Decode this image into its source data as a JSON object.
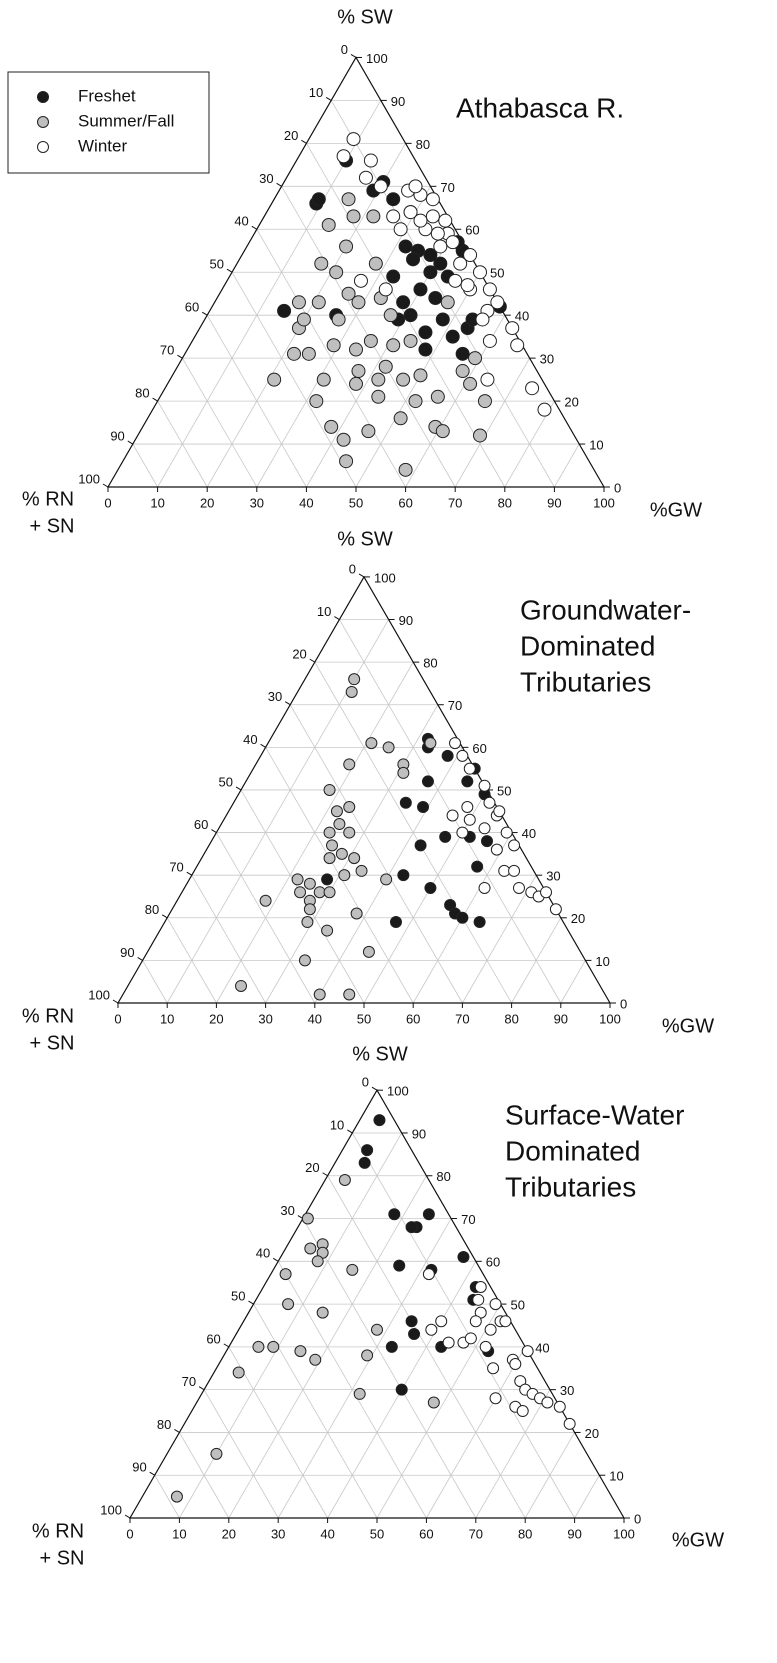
{
  "chart_data": [
    {
      "type": "ternary",
      "title": [
        "Athabasca R."
      ],
      "sw_label": "% SW",
      "gw_label": "%GW",
      "rn_label": [
        "% RN",
        "+ SN"
      ],
      "legend": "upper left",
      "grid": true,
      "sw_ticks": [
        0,
        10,
        20,
        30,
        40,
        50,
        60,
        70,
        80,
        90,
        100
      ],
      "gw_ticks": [
        0,
        10,
        20,
        30,
        40,
        50,
        60,
        70,
        80,
        90,
        100
      ],
      "rn_ticks": [
        0,
        10,
        20,
        30,
        40,
        50,
        60,
        70,
        80,
        90,
        100
      ],
      "series": [
        {
          "name": "Freshet",
          "color": "#1a1a1a",
          "gw": [
            10,
            9,
            9,
            20,
            19,
            24,
            29,
            35,
            38,
            41,
            44,
            40,
            33,
            38,
            40,
            44,
            41,
            46,
            54,
            54,
            58,
            48,
            48,
            56,
            52,
            26,
            15,
            39,
            44,
            42,
            32,
            35
          ],
          "sw": [
            76,
            66,
            67,
            71,
            69,
            67,
            64,
            55,
            54,
            52,
            55,
            50,
            49,
            43,
            46,
            44,
            40,
            36,
            37,
            39,
            42,
            39,
            32,
            31,
            35,
            40,
            41,
            39,
            49,
            57,
            56,
            53
          ]
        },
        {
          "name": "Summer/Fall",
          "color": "#bfbfbf",
          "gw": [
            15,
            18,
            14,
            22,
            28,
            20,
            17,
            21,
            17,
            21,
            26,
            33,
            20,
            22,
            21,
            25,
            29,
            36,
            37,
            44,
            42,
            47,
            52,
            56,
            61,
            66,
            69,
            38,
            42,
            32,
            38,
            44,
            46,
            51,
            59,
            61,
            37,
            31,
            45,
            58,
            59,
            29,
            27,
            20,
            47,
            58,
            50,
            41,
            42,
            34
          ],
          "sw": [
            67,
            63,
            61,
            63,
            52,
            56,
            52,
            50,
            43,
            43,
            45,
            44,
            37,
            31,
            25,
            31,
            33,
            34,
            40,
            34,
            28,
            25,
            20,
            21,
            24,
            20,
            12,
            14,
            11,
            20,
            24,
            21,
            13,
            16,
            14,
            13,
            27,
            25,
            6,
            4,
            30,
            43,
            39,
            39,
            43,
            27,
            26,
            33,
            25,
            32
          ]
        },
        {
          "name": "Winter",
          "color": "#ffffff",
          "gw": [
            9,
            9,
            15,
            16,
            20,
            26,
            29,
            32,
            29,
            34,
            37,
            34,
            39,
            39,
            41,
            46,
            50,
            50,
            54,
            56,
            56,
            63,
            66,
            57,
            49,
            37,
            32,
            26,
            29,
            45,
            74,
            79,
            64,
            60,
            27,
            33,
            27,
            46
          ],
          "sw": [
            81,
            77,
            76,
            72,
            70,
            69,
            68,
            67,
            64,
            63,
            62,
            60,
            59,
            56,
            57,
            54,
            50,
            46,
            46,
            41,
            39,
            37,
            33,
            43,
            47,
            59,
            62,
            63,
            60,
            52,
            23,
            18,
            25,
            34,
            70,
            46,
            48,
            48
          ]
        }
      ]
    },
    {
      "type": "ternary",
      "title": [
        "Groundwater-",
        "Dominated",
        "Tributaries"
      ],
      "sw_label": "% SW",
      "gw_label": "%GW",
      "rn_label": [
        "% RN",
        "+ SN"
      ],
      "grid": true,
      "sw_ticks": [
        0,
        10,
        20,
        30,
        40,
        50,
        60,
        70,
        80,
        90,
        100
      ],
      "gw_ticks": [
        0,
        10,
        20,
        30,
        40,
        50,
        60,
        70,
        80,
        90,
        100
      ],
      "rn_ticks": [
        0,
        10,
        20,
        30,
        40,
        50,
        60,
        70,
        80,
        90,
        100
      ],
      "series": [
        {
          "name": "Freshet",
          "color": "#1a1a1a",
          "gw": [
            32,
            33,
            38,
            45,
            50,
            45,
            37,
            35,
            39,
            43,
            47,
            52,
            56,
            57,
            43,
            50,
            56,
            58,
            60,
            64,
            47,
            28
          ],
          "sw": [
            62,
            60,
            58,
            52,
            49,
            55,
            52,
            47,
            46,
            37,
            39,
            39,
            38,
            32,
            30,
            27,
            23,
            21,
            20,
            19,
            19,
            29
          ]
        },
        {
          "name": "Summer/Fall",
          "color": "#bfbfbf",
          "gw": [
            10,
            11,
            21,
            25,
            30,
            33,
            31,
            19,
            18,
            22,
            24,
            24,
            27,
            23,
            25,
            28,
            26,
            31,
            31,
            34,
            22,
            25,
            24,
            28,
            30,
            27,
            28,
            18,
            29,
            34,
            38,
            40,
            33,
            45,
            23,
            40,
            46
          ],
          "sw": [
            76,
            73,
            61,
            60,
            56,
            61,
            54,
            56,
            50,
            45,
            46,
            42,
            40,
            40,
            37,
            35,
            34,
            34,
            30,
            31,
            29,
            28,
            26,
            26,
            26,
            24,
            22,
            24,
            19,
            17,
            21,
            29,
            10,
            12,
            4,
            2,
            2
          ]
        },
        {
          "name": "Winter",
          "color": "#ffffff",
          "gw": [
            38,
            41,
            44,
            49,
            52,
            55,
            55,
            59,
            62,
            59,
            54,
            48,
            46,
            50,
            63,
            65,
            68,
            71,
            73,
            74,
            78,
            61,
            50
          ],
          "sw": [
            61,
            58,
            55,
            51,
            47,
            44,
            45,
            40,
            37,
            36,
            41,
            46,
            44,
            40,
            31,
            31,
            27,
            26,
            25,
            26,
            22,
            27,
            43
          ]
        }
      ]
    },
    {
      "type": "ternary",
      "title": [
        "Surface-Water",
        "Dominated",
        "Tributaries"
      ],
      "sw_label": "% SW",
      "gw_label": "%GW",
      "rn_label": [
        "% RN",
        "+ SN"
      ],
      "grid": true,
      "sw_ticks": [
        0,
        10,
        20,
        30,
        40,
        50,
        60,
        70,
        80,
        90,
        100
      ],
      "gw_ticks": [
        0,
        10,
        20,
        30,
        40,
        50,
        60,
        70,
        80,
        90,
        100
      ],
      "rn_ticks": [
        0,
        10,
        20,
        30,
        40,
        50,
        60,
        70,
        80,
        90,
        100
      ],
      "series": [
        {
          "name": "Freshet",
          "color": "#1a1a1a",
          "gw": [
            4,
            5,
            6,
            18,
            25,
            24,
            23,
            37,
            25,
            32,
            43,
            34,
            36,
            33,
            43,
            53,
            40,
            44
          ],
          "sw": [
            93,
            86,
            83,
            71,
            71,
            68,
            68,
            61,
            59,
            58,
            54,
            46,
            43,
            40,
            40,
            39,
            30,
            51
          ]
        },
        {
          "name": "Summer/Fall",
          "color": "#bfbfbf",
          "gw": [
            4,
            1,
            7,
            5,
            8,
            8,
            16,
            3,
            7,
            15,
            6,
            9,
            15,
            19,
            29,
            28,
            5,
            32,
            48,
            10,
            7
          ],
          "sw": [
            79,
            70,
            64,
            63,
            62,
            60,
            58,
            57,
            50,
            48,
            40,
            40,
            39,
            37,
            38,
            44,
            34,
            29,
            27,
            15,
            5
          ]
        },
        {
          "name": "Winter",
          "color": "#ffffff",
          "gw": [
            32,
            44,
            45,
            49,
            47,
            47,
            52,
            53,
            51,
            39,
            40,
            44,
            47,
            48,
            52,
            61,
            59,
            60,
            56,
            63,
            65,
            67,
            69,
            71,
            65,
            67,
            74,
            78,
            60
          ],
          "sw": [
            57,
            54,
            51,
            50,
            48,
            46,
            46,
            46,
            44,
            44,
            46,
            41,
            41,
            42,
            40,
            39,
            37,
            36,
            35,
            32,
            30,
            29,
            28,
            27,
            26,
            25,
            26,
            22,
            28
          ]
        }
      ]
    }
  ]
}
